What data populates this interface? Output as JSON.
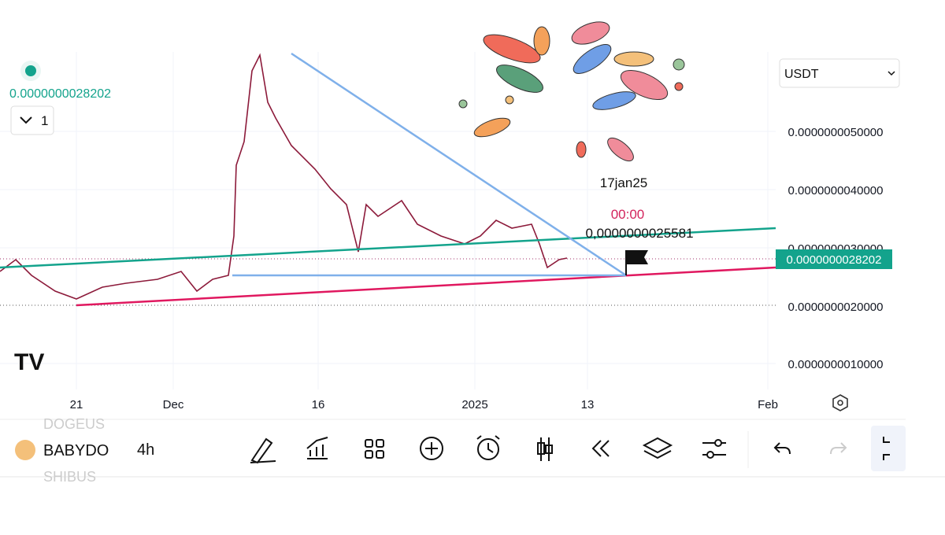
{
  "header": {
    "last_price": "0.0000000028202",
    "interval_count": "1",
    "currency": "USDT"
  },
  "price_axis": {
    "labels": [
      "0.0000000050000",
      "0.0000000040000",
      "0.0000000030000",
      "0.0000000020000",
      "0.0000000010000"
    ],
    "current_price": "0.0000000028202"
  },
  "time_axis": {
    "labels": [
      "21",
      "Dec",
      "16",
      "2025",
      "13",
      "Feb"
    ]
  },
  "annotations": {
    "date": "17jan25",
    "time": "00:00",
    "target_price": "0,0000000025581"
  },
  "toolbar": {
    "symbol_above": "DOGEUS",
    "symbol": "BABYDO",
    "symbol_below": "SHIBUS",
    "interval": "4h"
  }
}
